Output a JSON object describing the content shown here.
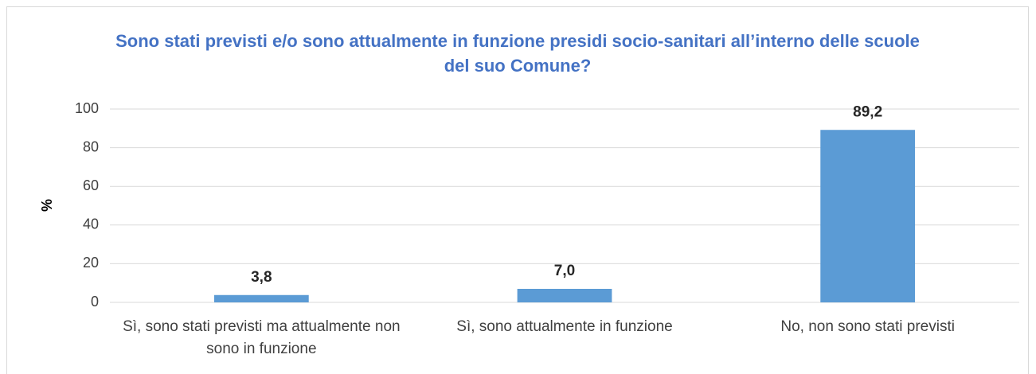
{
  "chart_data": {
    "type": "bar",
    "title": "Sono stati previsti e/o sono attualmente in funzione presidi socio-sanitari all’interno delle scuole del suo Comune?",
    "y_label": "%",
    "categories": [
      "Sì, sono stati previsti ma attualmente non sono in funzione",
      "Sì, sono attualmente in funzione",
      "No, non sono stati previsti"
    ],
    "values": [
      3.8,
      7.0,
      89.2
    ],
    "value_labels": [
      "3,8",
      "7,0",
      "89,2"
    ],
    "color": "#5b9bd5",
    "ylim": [
      0,
      100
    ],
    "yticks": [
      0,
      20,
      40,
      60,
      80,
      100
    ],
    "grid": true
  }
}
